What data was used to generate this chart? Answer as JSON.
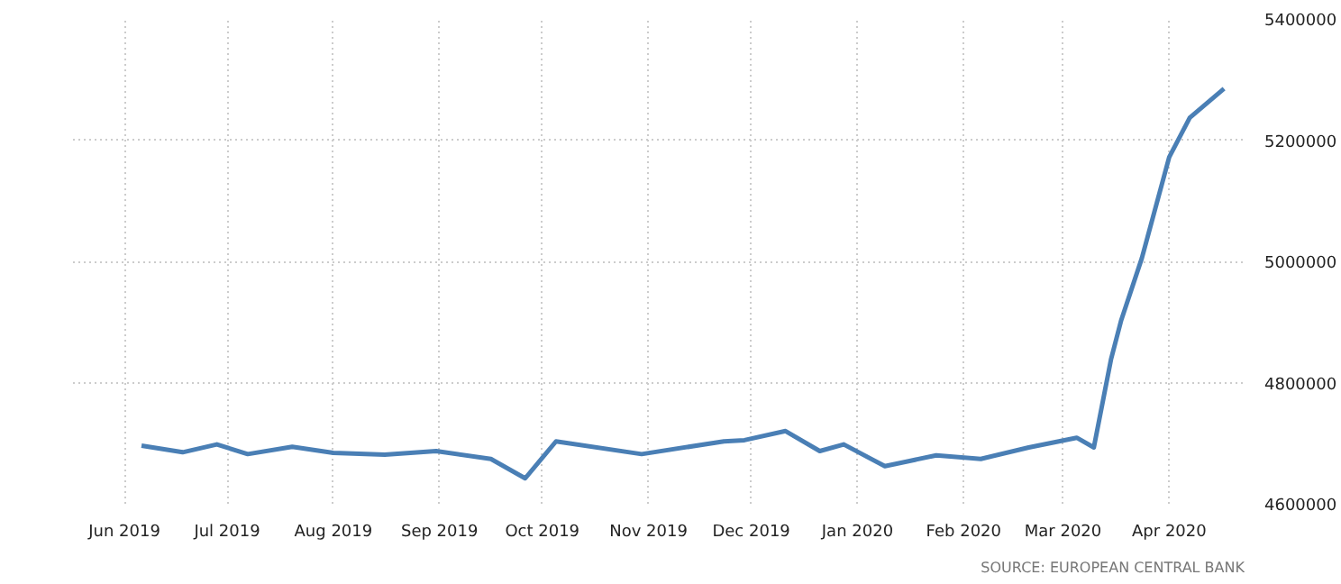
{
  "chart_data": {
    "type": "line",
    "x": [
      "2019-06-06",
      "2019-06-18",
      "2019-06-28",
      "2019-07-07",
      "2019-07-20",
      "2019-08-01",
      "2019-08-16",
      "2019-08-31",
      "2019-09-16",
      "2019-09-26",
      "2019-10-05",
      "2019-10-30",
      "2019-11-23",
      "2019-11-29",
      "2019-12-11",
      "2019-12-21",
      "2019-12-28",
      "2020-01-09",
      "2020-01-24",
      "2020-02-06",
      "2020-02-20",
      "2020-03-05",
      "2020-03-10",
      "2020-03-15",
      "2020-03-18",
      "2020-03-24",
      "2020-04-01",
      "2020-04-07",
      "2020-04-17"
    ],
    "series": [
      {
        "color": "#4a7fb5",
        "values": [
          4696000,
          4685000,
          4698000,
          4682000,
          4694000,
          4684000,
          4681000,
          4687000,
          4674000,
          4642000,
          4703000,
          4682000,
          4703000,
          4705000,
          4720000,
          4687000,
          4698000,
          4662000,
          4680000,
          4674000,
          4693000,
          4709000,
          4693000,
          4838000,
          4903000,
          5005000,
          5172000,
          5237000,
          5285000
        ]
      }
    ],
    "xlim": [
      "2019-05-17",
      "2020-04-23"
    ],
    "xticks": [
      {
        "value": "2019-06-01",
        "label": "Jun 2019"
      },
      {
        "value": "2019-07-01",
        "label": "Jul 2019"
      },
      {
        "value": "2019-08-01",
        "label": "Aug 2019"
      },
      {
        "value": "2019-09-01",
        "label": "Sep 2019"
      },
      {
        "value": "2019-10-01",
        "label": "Oct 2019"
      },
      {
        "value": "2019-11-01",
        "label": "Nov 2019"
      },
      {
        "value": "2019-12-01",
        "label": "Dec 2019"
      },
      {
        "value": "2020-01-01",
        "label": "Jan 2020"
      },
      {
        "value": "2020-02-01",
        "label": "Feb 2020"
      },
      {
        "value": "2020-03-01",
        "label": "Mar 2020"
      },
      {
        "value": "2020-04-01",
        "label": "Apr 2020"
      }
    ],
    "ylim": [
      4600000,
      5400000
    ],
    "yticks": [
      4600000,
      4800000,
      5000000,
      5200000,
      5400000
    ],
    "grid": true,
    "line_style": "solid",
    "annotations": [
      "SOURCE: EUROPEAN CENTRAL BANK"
    ]
  }
}
